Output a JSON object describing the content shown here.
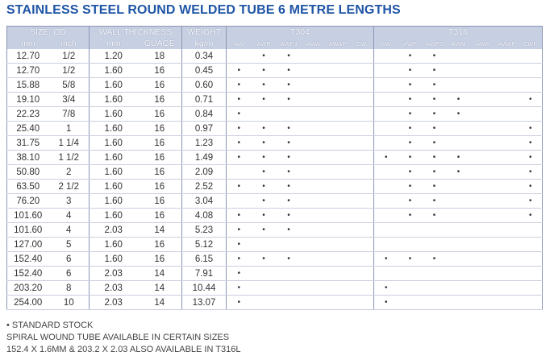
{
  "title": "STAINLESS STEEL ROUND WELDED TUBE 6 METRE LENGTHS",
  "table": {
    "group_headers": [
      "SIZE, OD",
      "WALL THICKNESS",
      "WEIGHT",
      "T304",
      "T316"
    ],
    "columns": [
      "mm",
      "inch",
      "mm",
      "GUAGE",
      "kg/m",
      "AW",
      "AWP",
      "AWP3",
      "AWA",
      "AWAP",
      "CW",
      "AW",
      "AWP",
      "AWP3",
      "AWM",
      "AWA",
      "AWAP",
      "CWP"
    ],
    "rows": [
      [
        "12.70",
        "1/2",
        "1.20",
        "18",
        "0.34",
        null,
        "•",
        "•",
        null,
        null,
        null,
        null,
        "•",
        "•",
        null,
        null,
        null,
        null
      ],
      [
        "12.70",
        "1/2",
        "1.60",
        "16",
        "0.45",
        "•",
        "•",
        "•",
        null,
        null,
        null,
        null,
        "•",
        "•",
        null,
        null,
        null,
        null
      ],
      [
        "15.88",
        "5/8",
        "1.60",
        "16",
        "0.60",
        "•",
        "•",
        "•",
        null,
        null,
        null,
        null,
        "•",
        "•",
        null,
        null,
        null,
        null
      ],
      [
        "19.10",
        "3/4",
        "1.60",
        "16",
        "0.71",
        "•",
        "•",
        "•",
        null,
        null,
        null,
        null,
        "•",
        "•",
        "•",
        null,
        null,
        "•"
      ],
      [
        "22.23",
        "7/8",
        "1.60",
        "16",
        "0.84",
        "•",
        null,
        null,
        null,
        null,
        null,
        null,
        "•",
        "•",
        "•",
        null,
        null,
        null
      ],
      [
        "25.40",
        "1",
        "1.60",
        "16",
        "0.97",
        "•",
        "•",
        "•",
        null,
        null,
        null,
        null,
        "•",
        "•",
        null,
        null,
        null,
        "•"
      ],
      [
        "31.75",
        "1 1/4",
        "1.60",
        "16",
        "1.23",
        "•",
        "•",
        "•",
        null,
        null,
        null,
        null,
        "•",
        "•",
        null,
        null,
        null,
        "•"
      ],
      [
        "38.10",
        "1 1/2",
        "1.60",
        "16",
        "1.49",
        "•",
        "•",
        "•",
        null,
        null,
        null,
        "•",
        "•",
        "•",
        "•",
        null,
        null,
        "•"
      ],
      [
        "50.80",
        "2",
        "1.60",
        "16",
        "2.09",
        null,
        "•",
        "•",
        null,
        null,
        null,
        null,
        "•",
        "•",
        "•",
        null,
        null,
        "•"
      ],
      [
        "63.50",
        "2 1/2",
        "1.60",
        "16",
        "2.52",
        "•",
        "•",
        "•",
        null,
        null,
        null,
        null,
        "•",
        "•",
        null,
        null,
        null,
        "•"
      ],
      [
        "76.20",
        "3",
        "1.60",
        "16",
        "3.04",
        null,
        "•",
        "•",
        null,
        null,
        null,
        null,
        "•",
        "•",
        null,
        null,
        null,
        "•"
      ],
      [
        "101.60",
        "4",
        "1.60",
        "16",
        "4.08",
        "•",
        "•",
        "•",
        null,
        null,
        null,
        null,
        "•",
        "•",
        null,
        null,
        null,
        "•"
      ],
      [
        "101.60",
        "4",
        "2.03",
        "14",
        "5.23",
        "•",
        "•",
        "•",
        null,
        null,
        null,
        null,
        null,
        null,
        null,
        null,
        null,
        null
      ],
      [
        "127.00",
        "5",
        "1.60",
        "16",
        "5.12",
        "•",
        null,
        null,
        null,
        null,
        null,
        null,
        null,
        null,
        null,
        null,
        null,
        null
      ],
      [
        "152.40",
        "6",
        "1.60",
        "16",
        "6.15",
        "•",
        "•",
        "•",
        null,
        null,
        null,
        "•",
        "•",
        "•",
        null,
        null,
        null,
        null
      ],
      [
        "152.40",
        "6",
        "2.03",
        "14",
        "7.91",
        "•",
        null,
        null,
        null,
        null,
        null,
        null,
        null,
        null,
        null,
        null,
        null,
        null
      ],
      [
        "203.20",
        "8",
        "2.03",
        "14",
        "10.44",
        "•",
        null,
        null,
        null,
        null,
        null,
        "•",
        null,
        null,
        null,
        null,
        null,
        null
      ],
      [
        "254.00",
        "10",
        "2.03",
        "14",
        "13.07",
        "•",
        null,
        null,
        null,
        null,
        null,
        "•",
        null,
        null,
        null,
        null,
        null,
        null
      ]
    ]
  },
  "notes": [
    "• STANDARD STOCK",
    "SPIRAL WOUND TUBE AVAILABLE IN CERTAIN SIZES",
    "152.4 X 1.6MM & 203.2 X 2.03 ALSO AVAILABLE IN T316L"
  ]
}
